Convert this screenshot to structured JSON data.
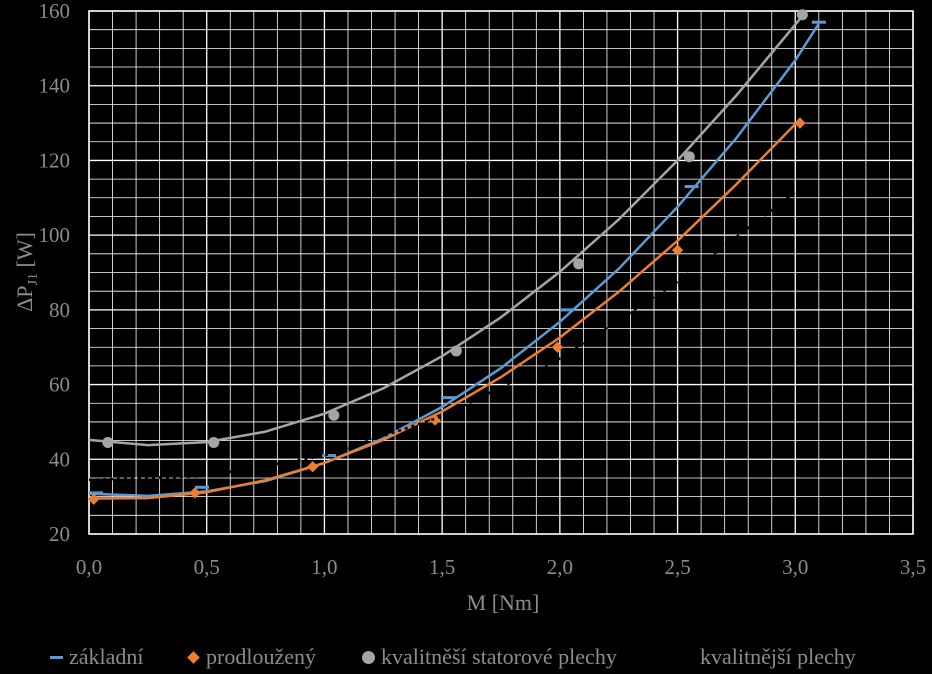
{
  "chart_data": {
    "type": "scatter",
    "xlabel": "M [Nm]",
    "ylabel": "ΔP",
    "ylabel_sub": "J1",
    "ylabel_unit": " [W]",
    "xlim": [
      0,
      3.5
    ],
    "ylim": [
      20,
      160
    ],
    "x_ticks": [
      "0,0",
      "0,5",
      "1,0",
      "1,5",
      "2,0",
      "2,5",
      "3,0",
      "3,5"
    ],
    "y_ticks": [
      "20",
      "40",
      "60",
      "80",
      "100",
      "120",
      "140",
      "160"
    ],
    "grid": true,
    "legend_position": "bottom",
    "series": [
      {
        "name": "základní",
        "color": "#5b9bd5",
        "marker": "dash",
        "points": [
          [
            0.03,
            31
          ],
          [
            0.48,
            32.5
          ],
          [
            1.02,
            41
          ],
          [
            1.53,
            56.5
          ],
          [
            2.03,
            80
          ],
          [
            2.56,
            113
          ],
          [
            3.1,
            157
          ]
        ],
        "trend": [
          [
            0.0,
            30.8
          ],
          [
            0.25,
            30.2
          ],
          [
            0.5,
            31.4
          ],
          [
            0.75,
            34.2
          ],
          [
            1.0,
            39
          ],
          [
            1.25,
            45.6
          ],
          [
            1.5,
            54
          ],
          [
            1.75,
            64.4
          ],
          [
            2.0,
            76.8
          ],
          [
            2.25,
            91
          ],
          [
            2.5,
            107.6
          ],
          [
            2.75,
            126
          ],
          [
            3.0,
            146.8
          ],
          [
            3.1,
            156.6
          ]
        ]
      },
      {
        "name": "prodloužený",
        "color": "#ed7d31",
        "marker": "diamond",
        "points": [
          [
            0.02,
            29.3
          ],
          [
            0.45,
            31
          ],
          [
            0.95,
            38
          ],
          [
            1.47,
            50.5
          ],
          [
            1.99,
            70
          ],
          [
            2.5,
            96
          ],
          [
            3.02,
            130
          ]
        ],
        "trend": [
          [
            0.0,
            29.5
          ],
          [
            0.25,
            29.6
          ],
          [
            0.5,
            31.2
          ],
          [
            0.75,
            34.4
          ],
          [
            1.0,
            39
          ],
          [
            1.25,
            45.2
          ],
          [
            1.5,
            52.8
          ],
          [
            1.75,
            62
          ],
          [
            2.0,
            72.6
          ],
          [
            2.25,
            84.8
          ],
          [
            2.5,
            98.5
          ],
          [
            2.75,
            113.6
          ],
          [
            3.02,
            131
          ]
        ]
      },
      {
        "name": "kvalitněší statorové plechy",
        "color": "#a5a5a5",
        "marker": "circle",
        "points": [
          [
            0.08,
            44.5
          ],
          [
            0.53,
            44.5
          ],
          [
            1.04,
            51.8
          ],
          [
            1.56,
            69
          ],
          [
            2.08,
            92.3
          ],
          [
            2.55,
            121
          ],
          [
            3.03,
            159
          ]
        ],
        "trend": [
          [
            0.0,
            45.2
          ],
          [
            0.25,
            43.8
          ],
          [
            0.5,
            44.6
          ],
          [
            0.75,
            47.4
          ],
          [
            1.0,
            52.2
          ],
          [
            1.25,
            59
          ],
          [
            1.5,
            67.6
          ],
          [
            1.75,
            78
          ],
          [
            2.0,
            90.2
          ],
          [
            2.25,
            104.2
          ],
          [
            2.5,
            120
          ],
          [
            2.75,
            137.4
          ],
          [
            3.03,
            158.6
          ]
        ]
      },
      {
        "name": "kvalitnější plechy",
        "color": "#000000",
        "marker": "none",
        "points": [],
        "trend": [
          [
            0.0,
            34.5
          ],
          [
            0.5,
            35.5
          ],
          [
            1.0,
            41
          ],
          [
            1.5,
            51.5
          ],
          [
            2.0,
            67
          ],
          [
            2.5,
            87.5
          ],
          [
            3.0,
            111.5
          ]
        ]
      }
    ]
  }
}
